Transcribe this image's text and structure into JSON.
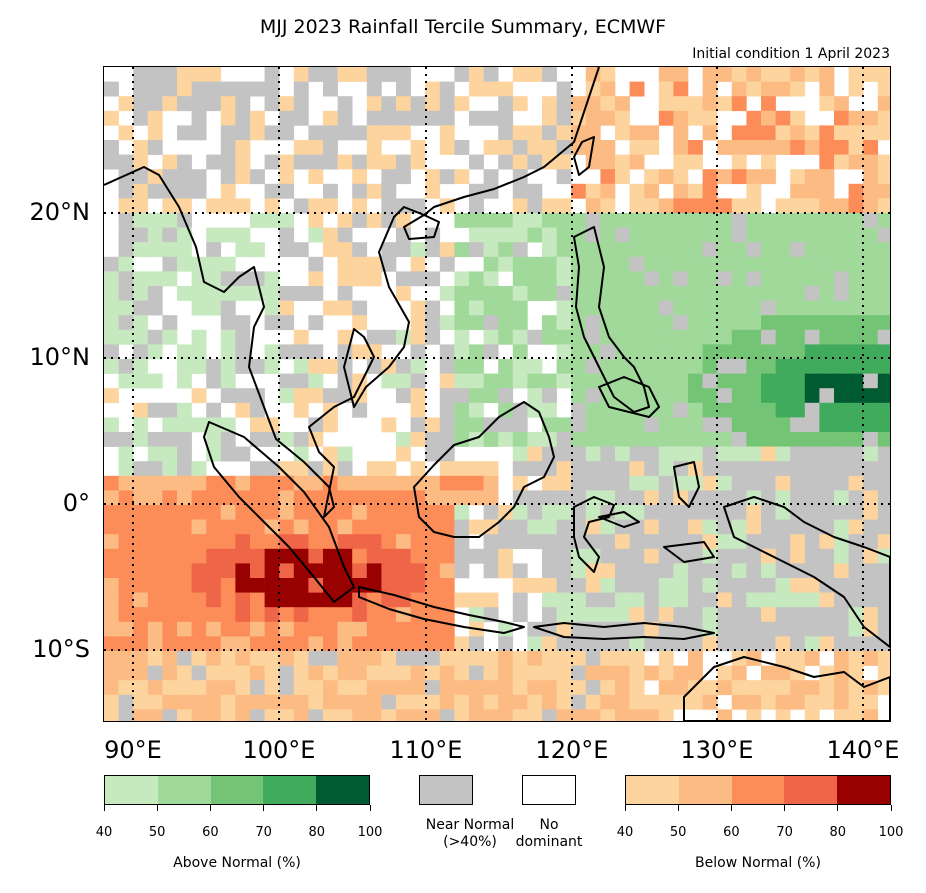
{
  "title": "MJJ 2023 Rainfall Tercile Summary, ECMWF",
  "subtitle": "Initial condition 1 April 2023",
  "lat_labels": [
    "20°N",
    "10°N",
    "0°",
    "10°S"
  ],
  "lon_labels": [
    "90°E",
    "100°E",
    "110°E",
    "120°E",
    "130°E",
    "140°E"
  ],
  "colorbar": {
    "above": {
      "label": "Above Normal (%)",
      "ticks": [
        "40",
        "50",
        "60",
        "70",
        "80",
        "100"
      ],
      "colors": [
        "#c7e9c0",
        "#a1d99b",
        "#74c476",
        "#41ab5d",
        "#005a32"
      ]
    },
    "near": {
      "label_line1": "Near Normal",
      "label_line2": "(>40%)",
      "color": "#c3c3c3"
    },
    "none": {
      "label_line1": "No",
      "label_line2": "dominant",
      "color": "#ffffff"
    },
    "below": {
      "label": "Below Normal (%)",
      "ticks": [
        "40",
        "50",
        "60",
        "70",
        "80",
        "100"
      ],
      "colors": [
        "#fdd49e",
        "#fdbb84",
        "#fc8d59",
        "#ef6548",
        "#990000"
      ]
    }
  }
}
